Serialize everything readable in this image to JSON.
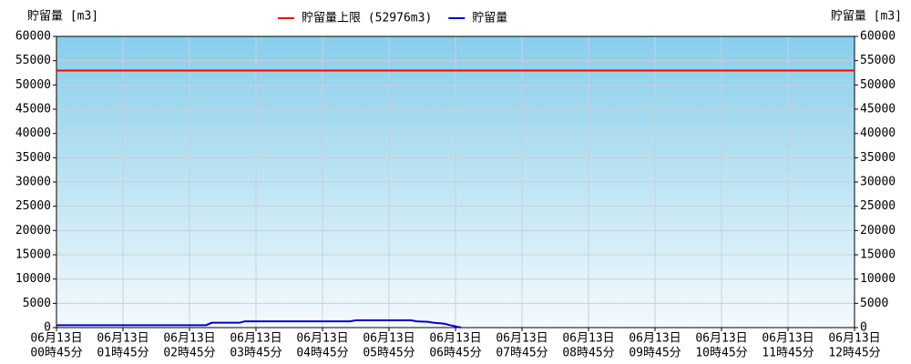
{
  "chart_data": {
    "type": "line",
    "ylabel": "貯留量 [m3]",
    "y2label": "貯留量 [m3]",
    "categories": [
      [
        "06月13日",
        "00時45分"
      ],
      [
        "06月13日",
        "01時45分"
      ],
      [
        "06月13日",
        "02時45分"
      ],
      [
        "06月13日",
        "03時45分"
      ],
      [
        "06月13日",
        "04時45分"
      ],
      [
        "06月13日",
        "05時45分"
      ],
      [
        "06月13日",
        "06時45分"
      ],
      [
        "06月13日",
        "07時45分"
      ],
      [
        "06月13日",
        "08時45分"
      ],
      [
        "06月13日",
        "09時45分"
      ],
      [
        "06月13日",
        "10時45分"
      ],
      [
        "06月13日",
        "11時45分"
      ],
      [
        "06月13日",
        "12時45分"
      ]
    ],
    "xlim": [
      "06月13日 00時45分",
      "06月13日 12時45分"
    ],
    "ylim": [
      0,
      60000
    ],
    "yticks": [
      0,
      5000,
      10000,
      15000,
      20000,
      25000,
      30000,
      35000,
      40000,
      45000,
      50000,
      55000,
      60000
    ],
    "y2lim": [
      0,
      60000
    ],
    "y2ticks": [
      0,
      5000,
      10000,
      15000,
      20000,
      25000,
      30000,
      35000,
      40000,
      45000,
      50000,
      55000,
      60000
    ],
    "grid": true,
    "series": [
      {
        "name": "貯留量上限 (52976m3)",
        "color": "#ff0000",
        "x": [
          "06月13日 00時45分",
          "06月13日 12時45分"
        ],
        "values": [
          52976,
          52976
        ]
      },
      {
        "name": "貯留量",
        "color": "#0000cc",
        "x": [
          "06月13日 00時45分",
          "06月13日 03時00分",
          "06月13日 03時05分",
          "06月13日 03時30分",
          "06月13日 03時35分",
          "06月13日 05時10分",
          "06月13日 05時15分",
          "06月13日 06時05分",
          "06月13日 06時10分",
          "06月13日 06時20分",
          "06月13日 06時25分",
          "06月13日 06時35分",
          "06月13日 06時40分",
          "06月13日 06時50分"
        ],
        "values": [
          500,
          500,
          1000,
          1000,
          1300,
          1300,
          1500,
          1500,
          1300,
          1200,
          1000,
          800,
          500,
          0
        ]
      }
    ]
  }
}
